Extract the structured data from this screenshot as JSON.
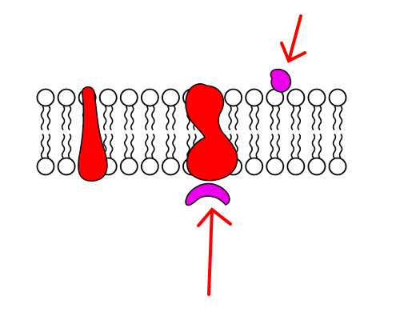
{
  "diagram": {
    "type": "cell-membrane-illustration",
    "components": [
      {
        "name": "phospholipid-bilayer",
        "head_count_per_leaflet": 15
      },
      {
        "name": "integral-protein",
        "count": 2,
        "color": "#ff0000"
      },
      {
        "name": "peripheral-protein",
        "count": 2,
        "color": "#ee00ee"
      },
      {
        "name": "pointer-arrow",
        "count": 2,
        "color": "#ff0000"
      }
    ],
    "colors": {
      "lipid_head_fill": "#ffffff",
      "outline": "#000000",
      "integral_protein": "#ff0000",
      "peripheral_protein": "#ee00ee",
      "arrow": "#ff0000"
    }
  }
}
